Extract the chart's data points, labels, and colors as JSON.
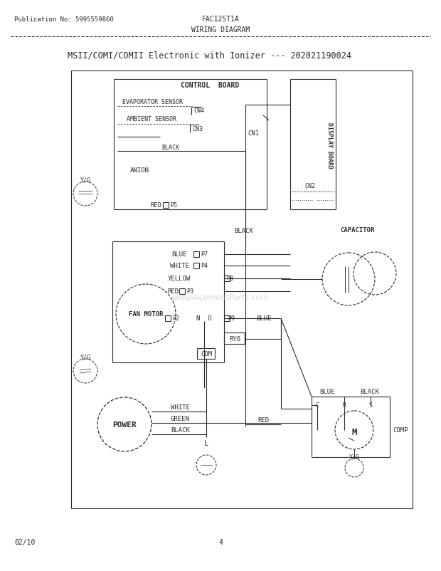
{
  "pub_no": "Publication No: 5995559860",
  "model": "FAC125T1A",
  "diagram_type": "WIRING DIAGRAM",
  "title": "MSII/COMI/COMII Electronic with Ionizer --- 202021190024",
  "page_date": "02/10",
  "page_num": "4",
  "bg_color": "#ffffff",
  "line_color": "#2a2a2a",
  "watermark": "eReplacementParts.com"
}
